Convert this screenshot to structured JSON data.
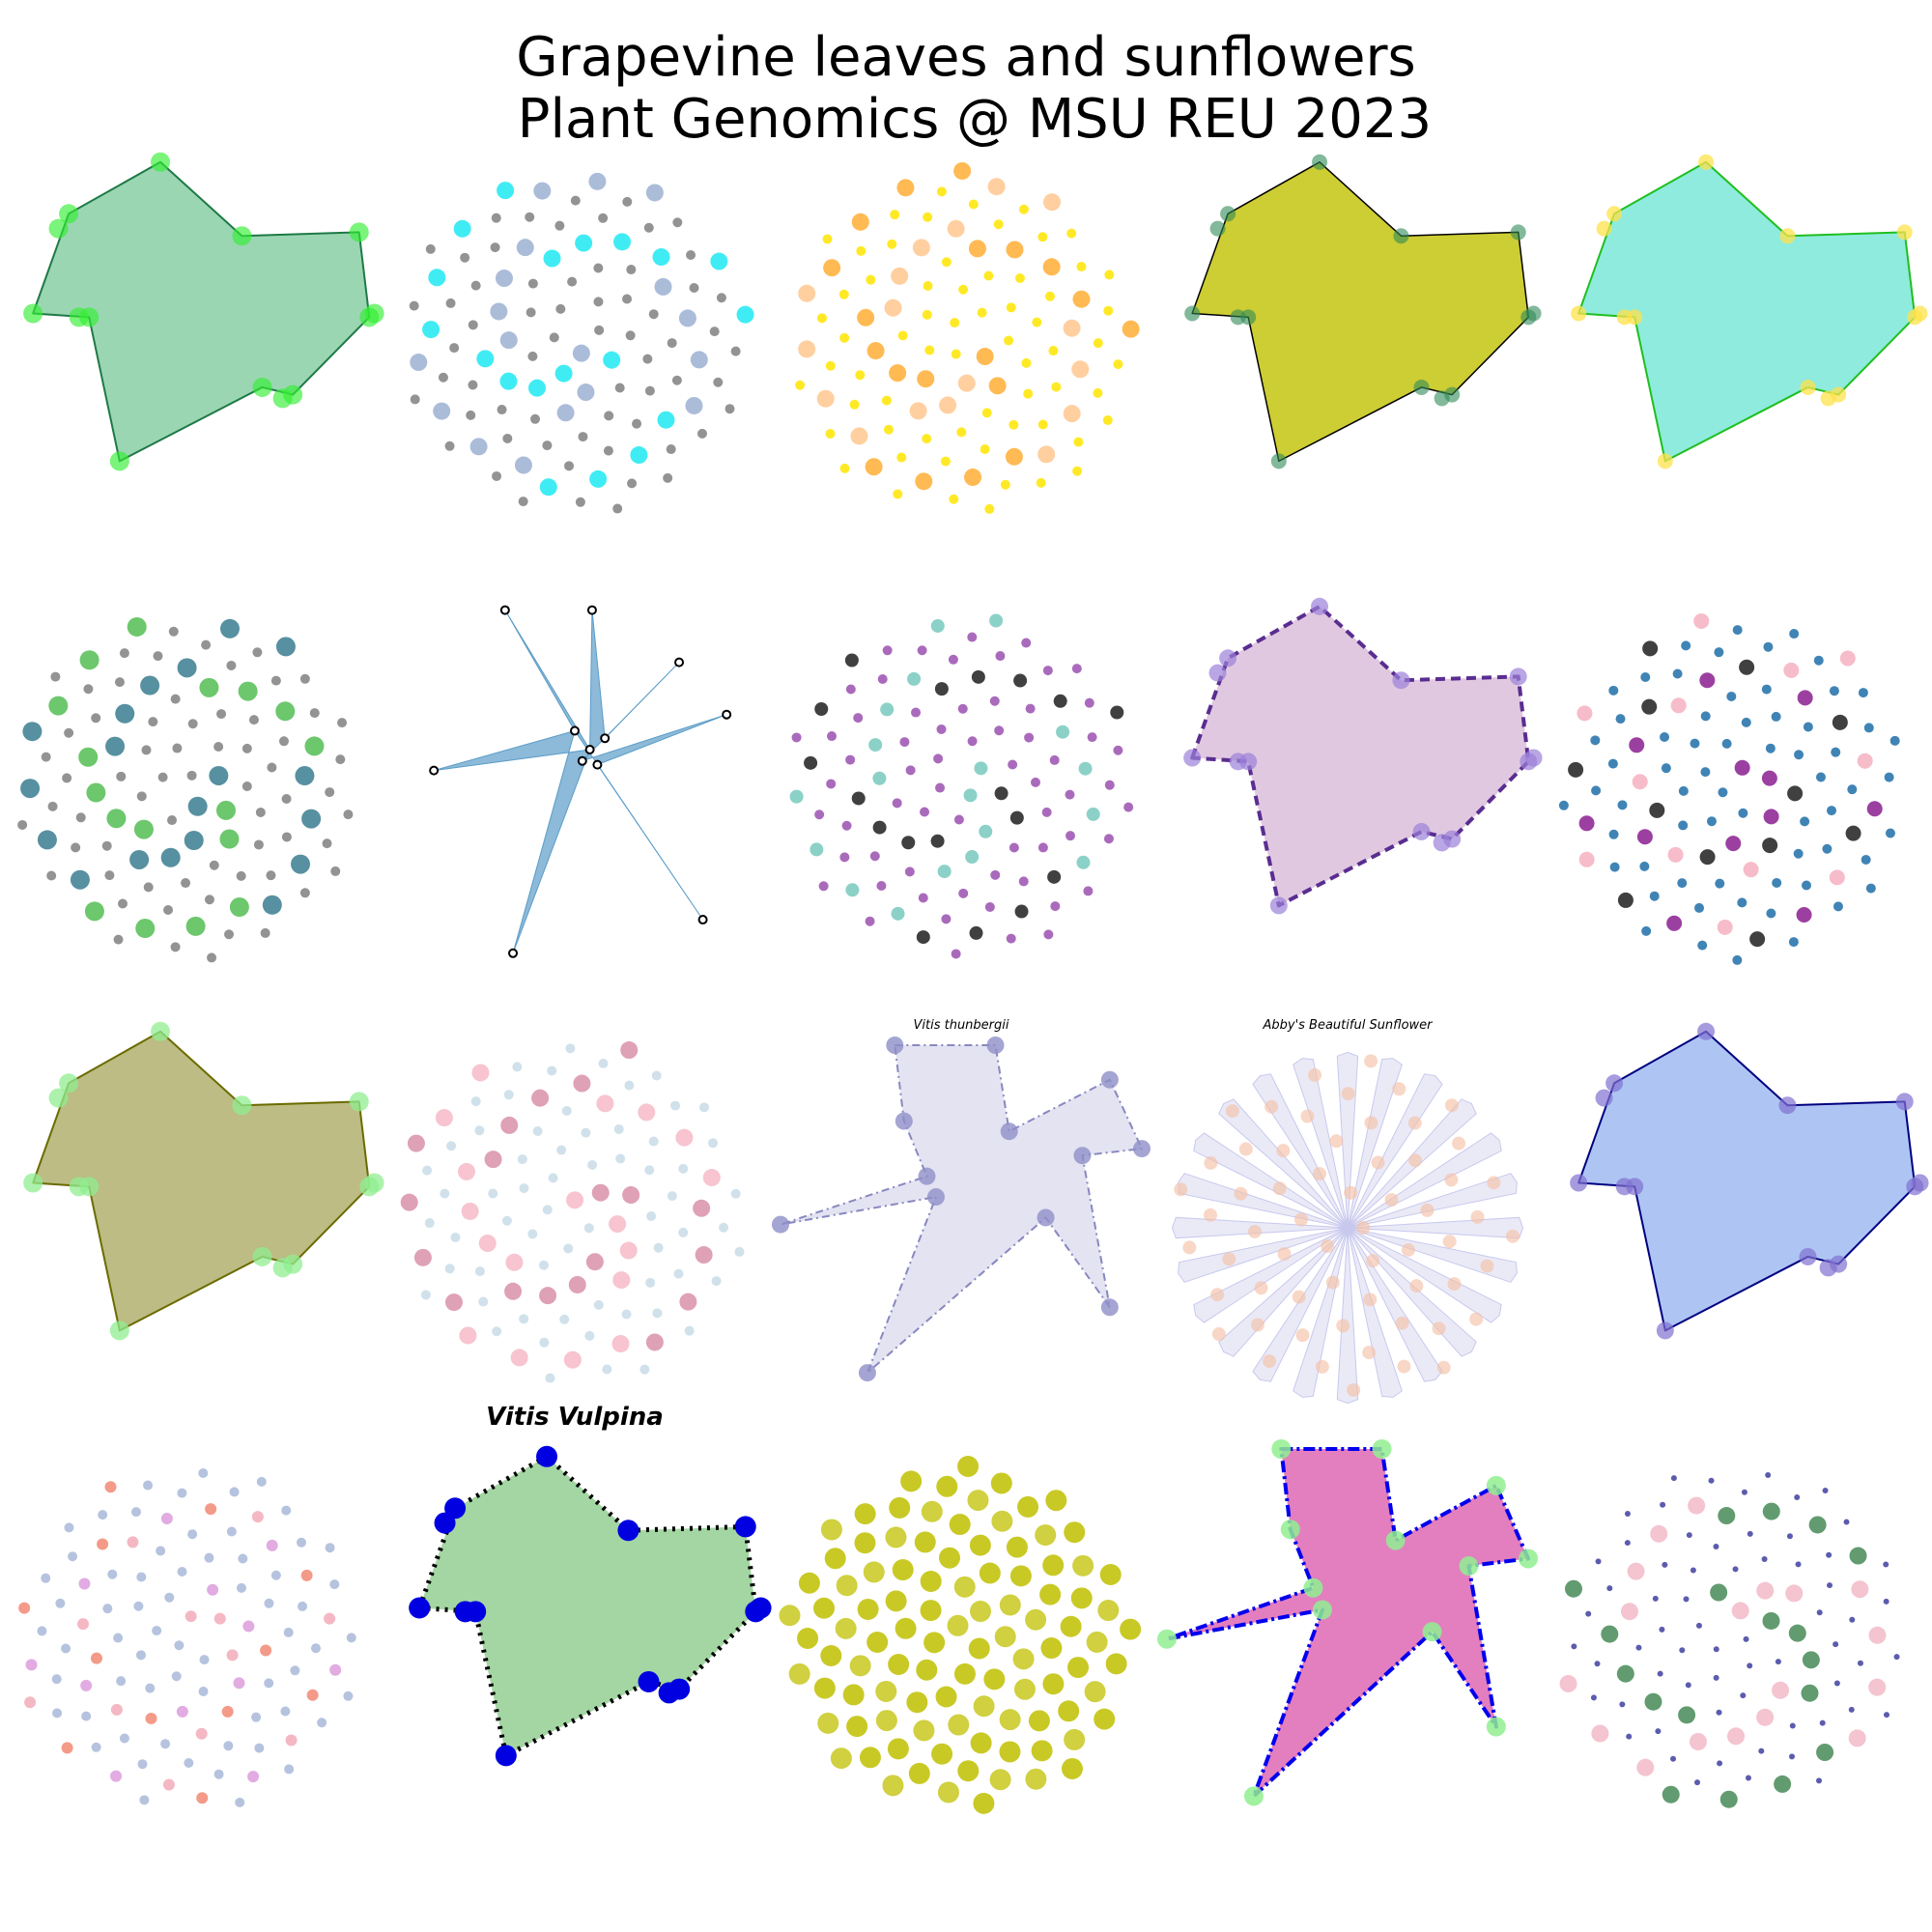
{
  "title": {
    "line1": "Grapevine leaves and sunflowers",
    "line2": " Plant Genomics @ MSU REU 2023"
  },
  "panels": [
    {
      "kind": "leaf",
      "title": "",
      "fill": "#66c08a",
      "fill_opacity": 0.65,
      "edge": "#1e7a46",
      "dash": "",
      "edge_width": 2,
      "marker": "#33ee33",
      "marker_opacity": 0.65,
      "marker_r": 10
    },
    {
      "kind": "flower",
      "title": "",
      "bg": "#808080",
      "accents": [
        "#00e5f0",
        "#8fa6cc"
      ],
      "accent_r": 9,
      "bg_r": 5
    },
    {
      "kind": "flower",
      "title": "",
      "bg": "#ffe500",
      "accents": [
        "#ffa319",
        "#ffbf80"
      ],
      "accent_r": 9,
      "bg_r": 5
    },
    {
      "kind": "leaf",
      "title": "",
      "fill": "#c8c81e",
      "fill_opacity": 0.9,
      "edge": "#000000",
      "dash": "",
      "edge_width": 1.5,
      "marker": "#2e8b57",
      "marker_opacity": 0.6,
      "marker_r": 8
    },
    {
      "kind": "leaf",
      "title": "",
      "fill": "#5fe3cf",
      "fill_opacity": 0.7,
      "edge": "#1fbf1f",
      "dash": "",
      "edge_width": 2,
      "marker": "#ffe24a",
      "marker_opacity": 0.75,
      "marker_r": 8
    },
    {
      "kind": "flower",
      "title": "",
      "bg": "#808080",
      "accents": [
        "#1f6b80",
        "#3cb43c"
      ],
      "accent_r": 10,
      "bg_r": 5
    },
    {
      "kind": "star",
      "title": "",
      "fill": "#5b9cc8",
      "fill_opacity": 0.7,
      "edge": "#5b9cc8",
      "dash": "",
      "edge_width": 1,
      "marker": "#000000",
      "marker_opacity": 1,
      "marker_r": 4,
      "n": 6
    },
    {
      "kind": "flower",
      "title": "",
      "bg": "#9b50b0",
      "accents": [
        "#000000",
        "#66c2b4"
      ],
      "accent_r": 7,
      "bg_r": 5
    },
    {
      "kind": "leaf",
      "title": "",
      "fill": "#d8bcd8",
      "fill_opacity": 0.8,
      "edge": "#5a2d91",
      "dash": "10,6",
      "edge_width": 4,
      "marker": "#9b80d8",
      "marker_opacity": 0.7,
      "marker_r": 9
    },
    {
      "kind": "flower",
      "title": "",
      "bg": "#1f6fa8",
      "accents": [
        "#000000",
        "#7a0080",
        "#f4a6b8"
      ],
      "accent_r": 8,
      "bg_r": 5
    },
    {
      "kind": "leaf",
      "title": "",
      "fill": "#a0a050",
      "fill_opacity": 0.7,
      "edge": "#6b6b00",
      "dash": "",
      "edge_width": 2,
      "marker": "#90ee90",
      "marker_opacity": 0.75,
      "marker_r": 10
    },
    {
      "kind": "flower",
      "title": "",
      "bg": "#c8dce8",
      "accents": [
        "#d4829c",
        "#f4b0c0"
      ],
      "accent_r": 9,
      "bg_r": 5
    },
    {
      "kind": "pinwheel",
      "title": "Vitis thunbergii",
      "title_size": 13,
      "fill": "#d0d0ea",
      "fill_opacity": 0.6,
      "edge": "#8888c0",
      "dash": "8,4,2,4",
      "edge_width": 2,
      "marker": "#8f8fc8",
      "marker_opacity": 0.8,
      "marker_r": 9
    },
    {
      "kind": "sunburst",
      "title": "Abby's Beautiful Sunflower",
      "title_size": 13,
      "fill": "#d8d8f0",
      "fill_opacity": 0.55,
      "edge": "#c8c8ee",
      "dash": "",
      "edge_width": 1,
      "marker": "#f4c0a8",
      "marker_opacity": 0.8,
      "marker_r": 7,
      "n": 24
    },
    {
      "kind": "leaf",
      "title": "",
      "fill": "#8cacf0",
      "fill_opacity": 0.7,
      "edge": "#000080",
      "dash": "",
      "edge_width": 2,
      "marker": "#8070d0",
      "marker_opacity": 0.7,
      "marker_r": 9
    },
    {
      "kind": "flower",
      "title": "",
      "bg": "#a8b8d8",
      "accents": [
        "#d88fd8",
        "#f0a0b0",
        "#f07860"
      ],
      "accent_r": 6,
      "bg_r": 5
    },
    {
      "kind": "leaf",
      "title": "Vitis Vulpina",
      "title_size": 26,
      "title_bold": true,
      "fill": "#7cc47c",
      "fill_opacity": 0.7,
      "edge": "#000000",
      "dash": "3,6",
      "edge_width": 5,
      "marker": "#0000e0",
      "marker_opacity": 1,
      "marker_r": 11
    },
    {
      "kind": "flower",
      "title": "",
      "bg": "#0000ee",
      "accents": [
        "#00c0c0",
        "#c000c0",
        "#c0c000",
        "#e0a0e0",
        "#ff9070",
        "#808000"
      ],
      "accent_r": 11,
      "bg_r": 11
    },
    {
      "kind": "pinwheel",
      "title": "",
      "fill": "#e070b8",
      "fill_opacity": 0.9,
      "edge": "#0000ee",
      "dash": "12,4,3,4",
      "edge_width": 4,
      "marker": "#90ee90",
      "marker_opacity": 0.85,
      "marker_r": 10
    },
    {
      "kind": "flower",
      "title": "",
      "bg": "#4040a0",
      "accents": [
        "#2e7a40",
        "#f0b0c0"
      ],
      "accent_r": 9,
      "bg_r": 3
    }
  ]
}
